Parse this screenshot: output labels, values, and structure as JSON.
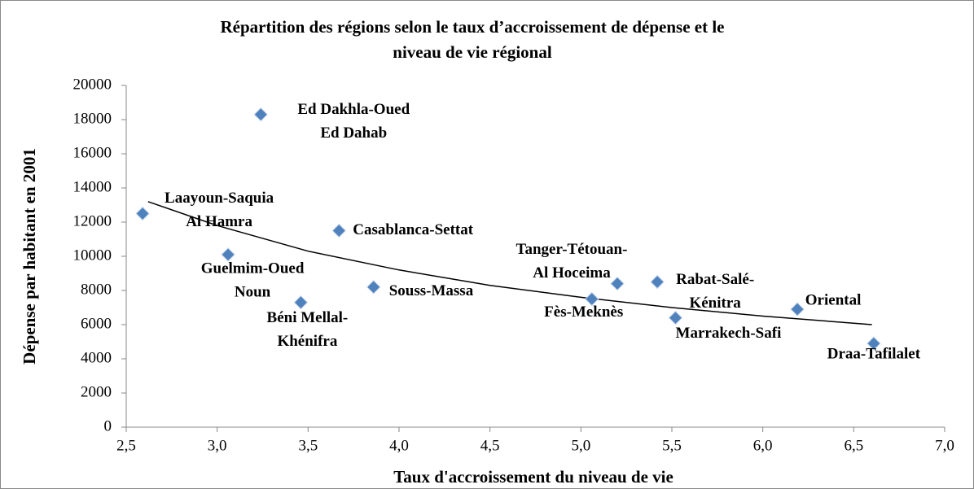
{
  "chart_data": {
    "type": "scatter",
    "title": [
      "Répartition des régions selon le taux d’accroissement de dépense et le",
      "niveau de vie régional"
    ],
    "x_label": "Taux d'accroissement du niveau de vie",
    "y_label": "Dépense par habitant en 2001",
    "series": [
      {
        "color": "#4f81bd",
        "x": [
          3.24,
          2.59,
          3.06,
          3.46,
          3.67,
          3.86,
          5.06,
          5.2,
          5.42,
          5.52,
          6.19,
          6.61
        ],
        "values": [
          18300,
          12500,
          10100,
          7300,
          11500,
          8200,
          7500,
          8400,
          8500,
          6400,
          6900,
          4900
        ],
        "labels": [
          [
            "Ed Dakhla-Oued",
            "Ed Dahab"
          ],
          [
            "Laayoun-Saquia",
            "Al Hamra"
          ],
          [
            "Guelmim-Oued",
            "Noun"
          ],
          [
            "Béni Mellal-",
            "Khénifra"
          ],
          [
            "Casablanca-Settat"
          ],
          [
            "Souss-Massa"
          ],
          [
            "Fès-Meknès"
          ],
          [
            "Tanger-Tétouan-",
            "Al Hoceima"
          ],
          [
            "Rabat-Salé-",
            "Kénitra"
          ],
          [
            "Marrakech-Safi"
          ],
          [
            "Oriental"
          ],
          [
            "Draa-Tafilalet"
          ]
        ]
      }
    ],
    "trendline": {
      "color": "#000000",
      "x": [
        2.62,
        3.0,
        3.5,
        4.0,
        4.5,
        5.0,
        5.5,
        6.0,
        6.6
      ],
      "values": [
        13200,
        11800,
        10300,
        9200,
        8300,
        7600,
        7000,
        6500,
        6000
      ]
    },
    "xlim": [
      2.5,
      7.0
    ],
    "xticks": [
      {
        "value": 2.5,
        "label": "2,5"
      },
      {
        "value": 3.0,
        "label": "3,0"
      },
      {
        "value": 3.5,
        "label": "3,5"
      },
      {
        "value": 4.0,
        "label": "4,0"
      },
      {
        "value": 4.5,
        "label": "4,5"
      },
      {
        "value": 5.0,
        "label": "5,0"
      },
      {
        "value": 5.5,
        "label": "5,5"
      },
      {
        "value": 6.0,
        "label": "6,0"
      },
      {
        "value": 6.5,
        "label": "6,5"
      },
      {
        "value": 7.0,
        "label": "7,0"
      }
    ],
    "ylim": [
      0,
      20000
    ],
    "yticks": [
      0,
      2000,
      4000,
      6000,
      8000,
      10000,
      12000,
      14000,
      16000,
      18000,
      20000
    ]
  }
}
